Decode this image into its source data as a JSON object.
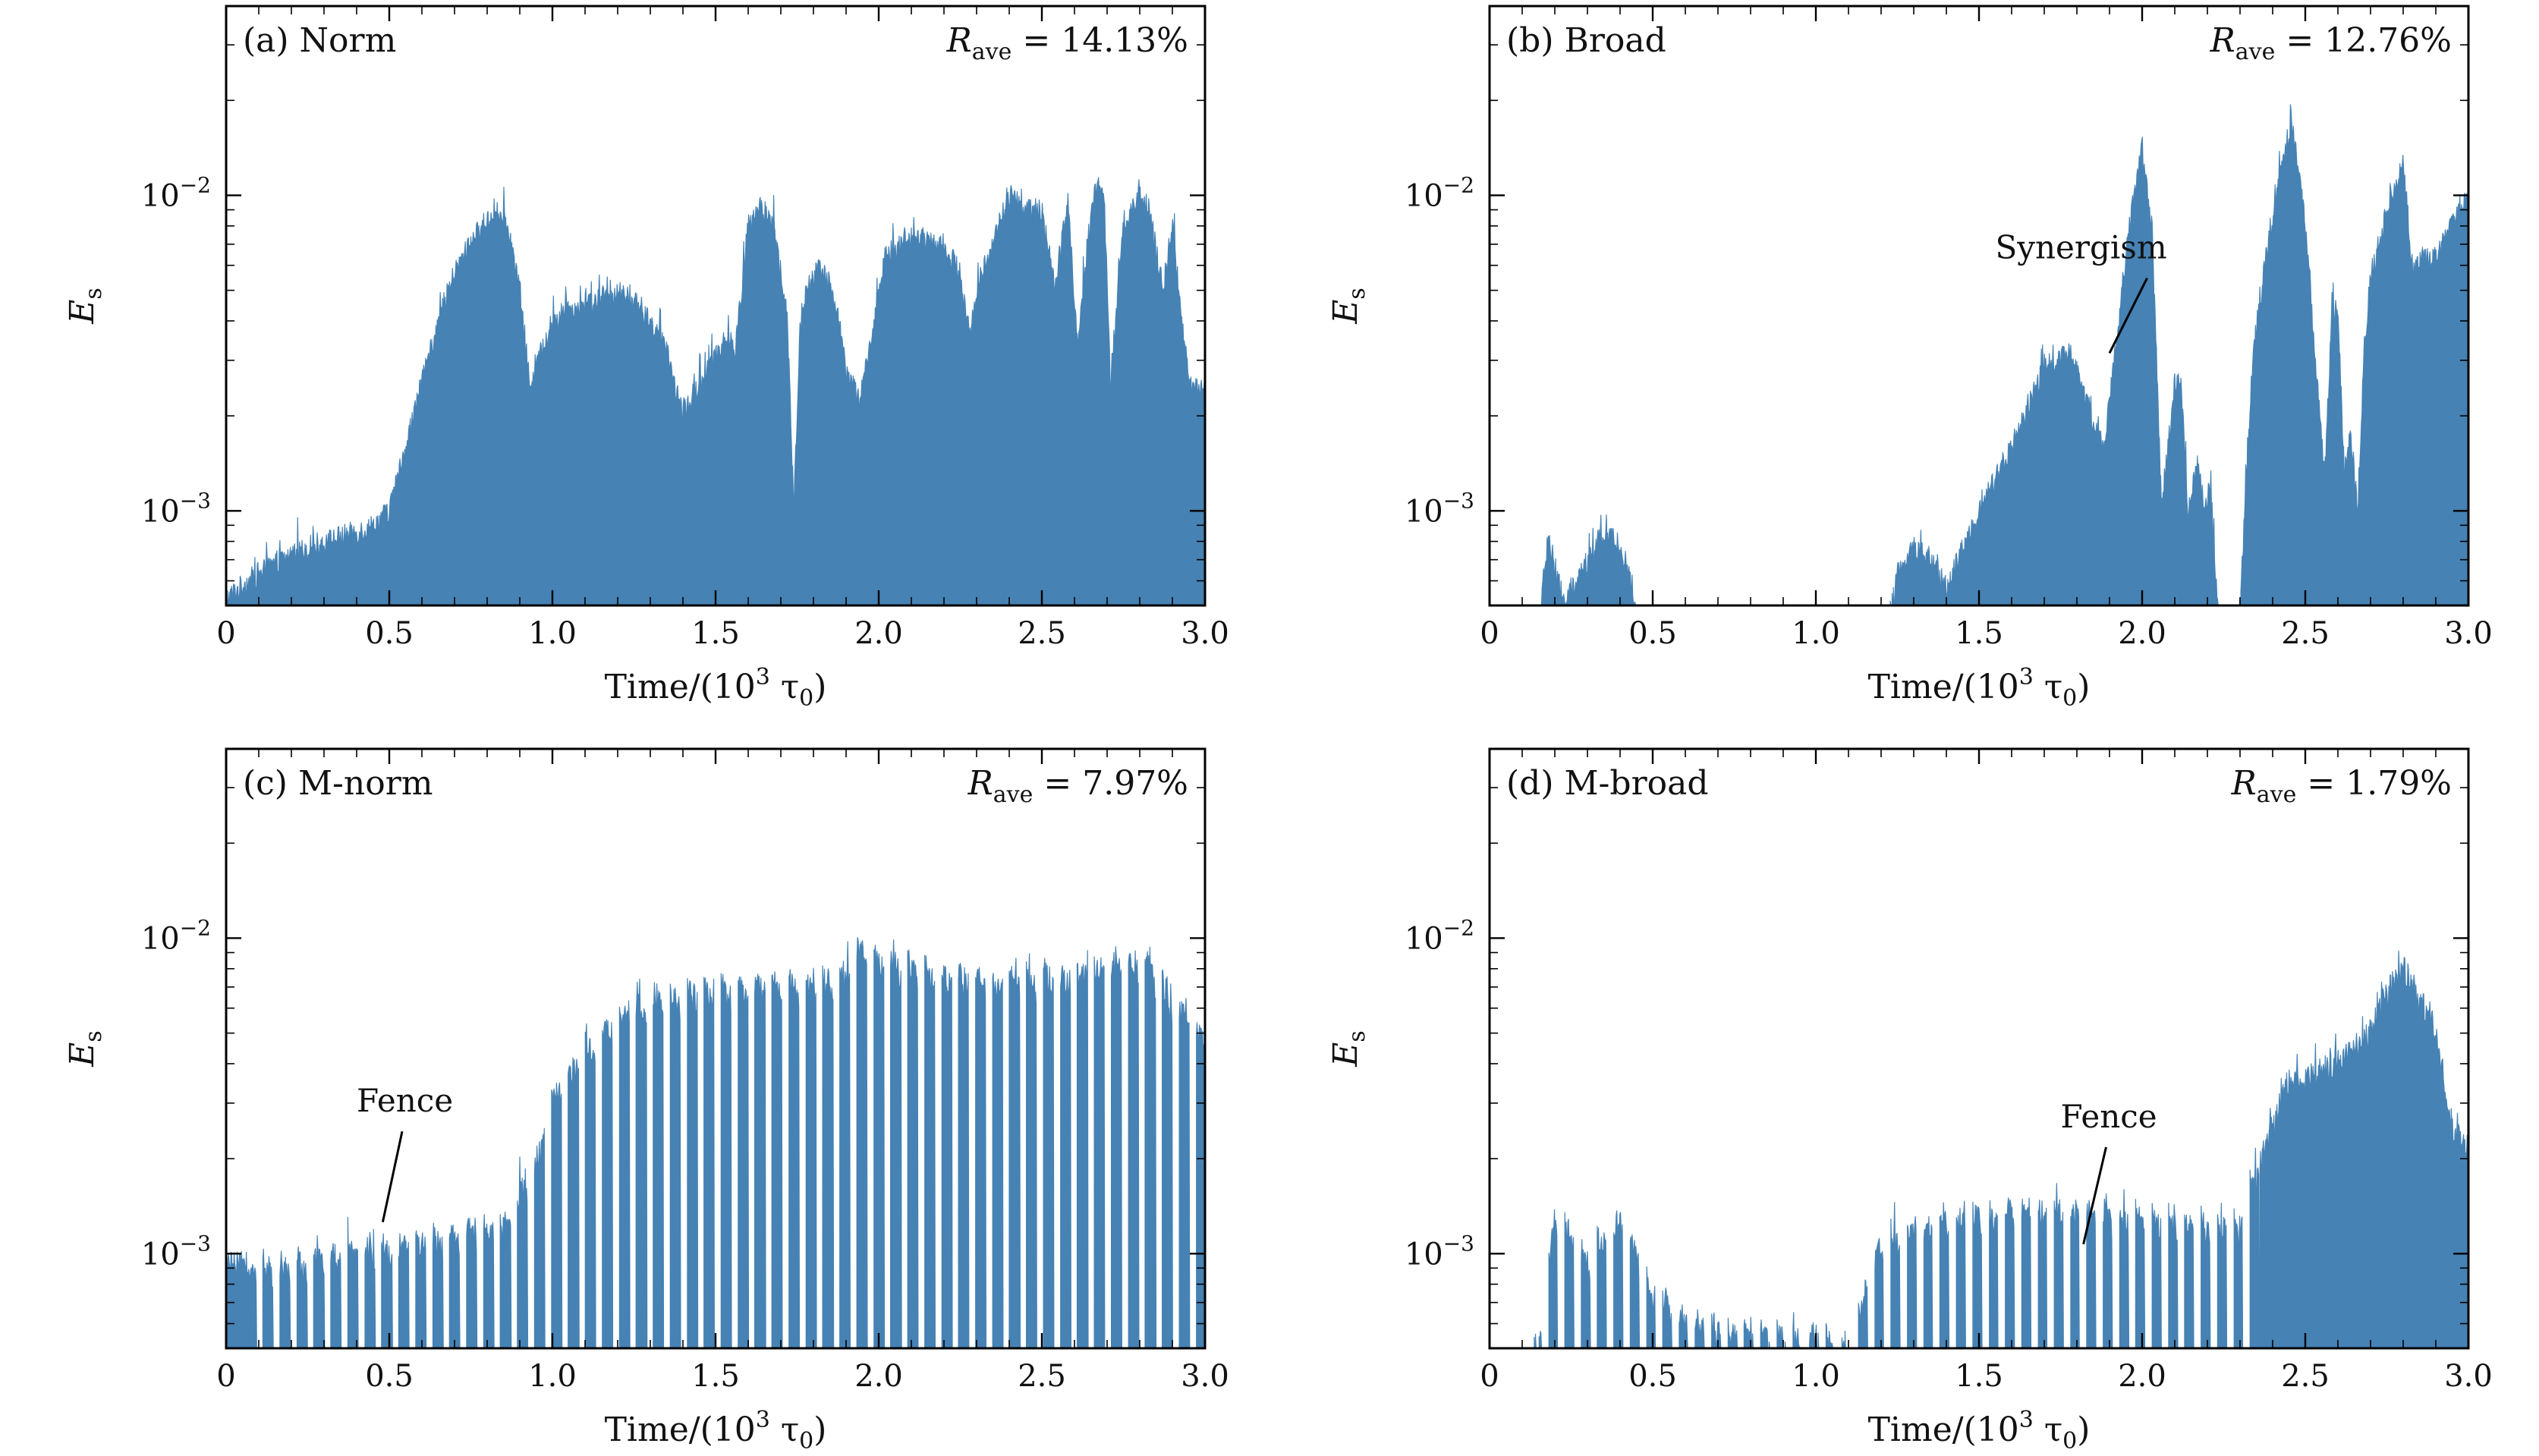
{
  "figure": {
    "colors": {
      "series": "#4682b4",
      "axis": "#000000",
      "text": "#111111"
    }
  },
  "chart_data": [
    {
      "type": "area",
      "panel_label": "(a) Norm",
      "rave": {
        "symbol": "R",
        "subscript": "ave",
        "value": "14.13%"
      },
      "xlabel": "Time/(10³ τ₀)",
      "ylabel": "E_s",
      "xlim": [
        0,
        3.0
      ],
      "ylim_log10": [
        -3.3,
        -1.4
      ],
      "xticks": [
        0,
        0.5,
        1.0,
        1.5,
        2.0,
        2.5,
        3.0
      ],
      "xtick_labels": [
        "0",
        "0.5",
        "1.0",
        "1.5",
        "2.0",
        "2.5",
        "3.0"
      ],
      "yticks_log10": [
        -3,
        -2
      ],
      "ytick_labels": [
        "10⁻³",
        "10⁻²"
      ],
      "annotations": [],
      "envelope": {
        "x": [
          0,
          0.1,
          0.2,
          0.3,
          0.4,
          0.45,
          0.5,
          0.55,
          0.6,
          0.65,
          0.7,
          0.75,
          0.8,
          0.83,
          0.86,
          0.9,
          0.93,
          1.0,
          1.05,
          1.1,
          1.15,
          1.2,
          1.25,
          1.3,
          1.35,
          1.4,
          1.45,
          1.48,
          1.5,
          1.53,
          1.56,
          1.6,
          1.64,
          1.68,
          1.72,
          1.74,
          1.76,
          1.78,
          1.82,
          1.86,
          1.9,
          1.94,
          1.97,
          2.02,
          2.06,
          2.1,
          2.15,
          2.2,
          2.25,
          2.28,
          2.3,
          2.35,
          2.4,
          2.45,
          2.5,
          2.54,
          2.58,
          2.61,
          2.64,
          2.67,
          2.69,
          2.71,
          2.75,
          2.8,
          2.83,
          2.87,
          2.9,
          2.92,
          2.95,
          3.0
        ],
        "log10_y": [
          -3.28,
          -3.2,
          -3.14,
          -3.1,
          -3.07,
          -3.05,
          -3.0,
          -2.8,
          -2.6,
          -2.4,
          -2.25,
          -2.15,
          -2.08,
          -2.06,
          -2.1,
          -2.3,
          -2.6,
          -2.4,
          -2.36,
          -2.35,
          -2.33,
          -2.31,
          -2.34,
          -2.4,
          -2.5,
          -2.7,
          -2.6,
          -2.55,
          -2.5,
          -2.45,
          -2.5,
          -2.1,
          -2.04,
          -2.1,
          -2.4,
          -3.0,
          -2.4,
          -2.3,
          -2.22,
          -2.3,
          -2.55,
          -2.65,
          -2.5,
          -2.2,
          -2.16,
          -2.14,
          -2.14,
          -2.16,
          -2.25,
          -2.45,
          -2.3,
          -2.15,
          -2.0,
          -2.05,
          -2.05,
          -2.3,
          -2.0,
          -2.5,
          -2.15,
          -1.95,
          -1.99,
          -2.6,
          -2.1,
          -2.0,
          -2.05,
          -2.3,
          -2.1,
          -2.3,
          -2.6,
          -2.6
        ],
        "jitter": 0.04
      }
    },
    {
      "type": "area",
      "panel_label": "(b) Broad",
      "rave": {
        "symbol": "R",
        "subscript": "ave",
        "value": "12.76%"
      },
      "xlabel": "Time/(10³ τ₀)",
      "ylabel": "E_s",
      "xlim": [
        0,
        3.0
      ],
      "ylim_log10": [
        -3.3,
        -1.4
      ],
      "xticks": [
        0,
        0.5,
        1.0,
        1.5,
        2.0,
        2.5,
        3.0
      ],
      "xtick_labels": [
        "0",
        "0.5",
        "1.0",
        "1.5",
        "2.0",
        "2.5",
        "3.0"
      ],
      "yticks_log10": [
        -3,
        -2
      ],
      "ytick_labels": [
        "10⁻³",
        "10⁻²"
      ],
      "annotations": [
        {
          "text": "Synergism",
          "x": 1.55,
          "log10_y": -2.2,
          "arrow_to_x": 1.9,
          "arrow_to_log10_y": -2.5
        }
      ],
      "envelope": {
        "x": [
          0,
          0.13,
          0.18,
          0.23,
          0.28,
          0.33,
          0.38,
          0.43,
          0.48,
          0.5,
          1.2,
          1.25,
          1.3,
          1.35,
          1.4,
          1.5,
          1.6,
          1.7,
          1.78,
          1.84,
          1.88,
          1.92,
          1.96,
          2.0,
          2.03,
          2.06,
          2.1,
          2.12,
          2.14,
          2.17,
          2.19,
          2.21,
          2.23,
          2.25,
          2.27,
          2.3,
          2.34,
          2.38,
          2.42,
          2.46,
          2.5,
          2.56,
          2.58,
          2.6,
          2.62,
          2.64,
          2.66,
          2.68,
          2.7,
          2.72,
          2.76,
          2.8,
          2.83,
          2.86,
          2.9,
          2.95,
          3.0
        ],
        "log10_y": [
          -3.5,
          -3.5,
          -3.1,
          -3.3,
          -3.2,
          -3.1,
          -3.08,
          -3.2,
          -3.5,
          -3.5,
          -3.5,
          -3.2,
          -3.12,
          -3.15,
          -3.25,
          -3.0,
          -2.8,
          -2.55,
          -2.5,
          -2.7,
          -2.8,
          -2.5,
          -2.1,
          -1.85,
          -2.1,
          -3.0,
          -2.6,
          -2.6,
          -3.0,
          -2.85,
          -3.0,
          -2.9,
          -3.3,
          -3.5,
          -3.5,
          -3.3,
          -2.5,
          -2.2,
          -1.95,
          -1.76,
          -2.1,
          -2.9,
          -2.4,
          -2.35,
          -2.9,
          -2.75,
          -3.0,
          -2.5,
          -2.25,
          -2.2,
          -2.0,
          -1.9,
          -2.25,
          -2.2,
          -2.2,
          -2.1,
          -2.0
        ],
        "jitter": 0.04
      }
    },
    {
      "type": "area",
      "panel_label": "(c) M-norm",
      "rave": {
        "symbol": "R",
        "subscript": "ave",
        "value": "7.97%"
      },
      "xlabel": "Time/(10³ τ₀)",
      "ylabel": "E_s",
      "xlim": [
        0,
        3.0
      ],
      "ylim_log10": [
        -3.3,
        -1.4
      ],
      "xticks": [
        0,
        0.5,
        1.0,
        1.5,
        2.0,
        2.5,
        3.0
      ],
      "xtick_labels": [
        "0",
        "0.5",
        "1.0",
        "1.5",
        "2.0",
        "2.5",
        "3.0"
      ],
      "yticks_log10": [
        -3,
        -2
      ],
      "ytick_labels": [
        "10⁻³",
        "10⁻²"
      ],
      "annotations": [
        {
          "text": "Fence",
          "x": 0.4,
          "log10_y": -2.55,
          "arrow_to_x": 0.48,
          "arrow_to_log10_y": -2.9
        }
      ],
      "envelope": {
        "x": [
          0,
          0.3,
          0.6,
          0.85,
          0.95,
          1.0,
          1.1,
          1.2,
          1.3,
          1.5,
          1.8,
          1.9,
          1.95,
          2.0,
          2.1,
          2.2,
          2.4,
          2.6,
          2.7,
          2.8,
          2.85,
          2.9,
          3.0
        ],
        "log10_y": [
          -3.05,
          -3.0,
          -2.95,
          -2.9,
          -2.7,
          -2.5,
          -2.35,
          -2.25,
          -2.18,
          -2.15,
          -2.13,
          -2.1,
          -2.0,
          -2.05,
          -2.08,
          -2.12,
          -2.12,
          -2.1,
          -2.08,
          -2.06,
          -2.1,
          -2.2,
          -2.3
        ],
        "fence": {
          "start": 0.06,
          "end": 3.0,
          "spacing": 0.052,
          "duty": 0.62,
          "floor_log10": -3.3
        },
        "jitter": 0.05
      }
    },
    {
      "type": "area",
      "panel_label": "(d) M-broad",
      "rave": {
        "symbol": "R",
        "subscript": "ave",
        "value": "1.79%"
      },
      "xlabel": "Time/(10³ τ₀)",
      "ylabel": "E_s",
      "xlim": [
        0,
        3.0
      ],
      "ylim_log10": [
        -3.3,
        -1.4
      ],
      "xticks": [
        0,
        0.5,
        1.0,
        1.5,
        2.0,
        2.5,
        3.0
      ],
      "xtick_labels": [
        "0",
        "0.5",
        "1.0",
        "1.5",
        "2.0",
        "2.5",
        "3.0"
      ],
      "yticks_log10": [
        -3,
        -2
      ],
      "ytick_labels": [
        "10⁻³",
        "10⁻²"
      ],
      "annotations": [
        {
          "text": "Fence",
          "x": 1.75,
          "log10_y": -2.6,
          "arrow_to_x": 1.82,
          "arrow_to_log10_y": -2.97
        }
      ],
      "envelope": {
        "x": [
          0,
          0.12,
          0.2,
          0.3,
          0.4,
          0.5,
          0.6,
          0.8,
          1.0,
          1.1,
          1.15,
          1.2,
          1.4,
          1.6,
          1.8,
          2.0,
          2.2,
          2.3,
          2.35,
          2.4,
          2.45,
          2.5,
          2.6,
          2.7,
          2.75,
          2.8,
          2.85,
          2.9,
          2.95,
          3.0
        ],
        "log10_y": [
          -3.5,
          -3.5,
          -2.85,
          -3.0,
          -2.88,
          -3.1,
          -3.2,
          -3.25,
          -3.25,
          -3.3,
          -3.1,
          -2.95,
          -2.88,
          -2.85,
          -2.85,
          -2.88,
          -2.9,
          -2.9,
          -2.75,
          -2.6,
          -2.45,
          -2.45,
          -2.4,
          -2.3,
          -2.18,
          -2.1,
          -2.2,
          -2.3,
          -2.6,
          -2.7
        ],
        "fence": {
          "start": 0.13,
          "end": 2.36,
          "spacing": 0.05,
          "duty": 0.55,
          "floor_log10": -3.3
        },
        "jitter": 0.05
      }
    }
  ]
}
